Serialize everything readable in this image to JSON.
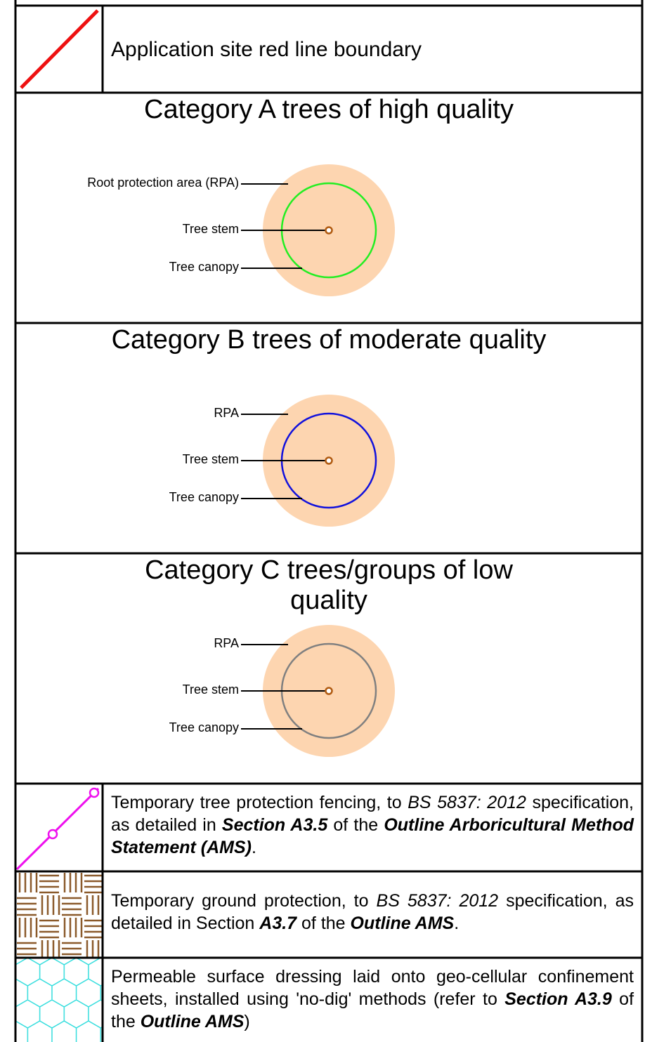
{
  "boundary": {
    "label": "Application site red line boundary",
    "color": "#ee1111"
  },
  "categories": [
    {
      "title": "Category A trees of high quality",
      "rpa_label": "Root protection area (RPA)",
      "stem_label": "Tree stem",
      "canopy_label": "Tree canopy",
      "canopy_color": "#22ee22"
    },
    {
      "title": "Category B trees of moderate quality",
      "rpa_label": "RPA",
      "stem_label": "Tree stem",
      "canopy_label": "Tree canopy",
      "canopy_color": "#1111dd"
    },
    {
      "title": "Category C trees/groups of low quality",
      "rpa_label": "RPA",
      "stem_label": "Tree stem",
      "canopy_label": "Tree canopy",
      "canopy_color": "#808080"
    }
  ],
  "legend_rows": [
    {
      "segments": [
        {
          "text": "Temporary tree protection fencing, to ",
          "style": "normal"
        },
        {
          "text": "BS 5837: 2012",
          "style": "italic"
        },
        {
          "text": " specification, as detailed in ",
          "style": "normal"
        },
        {
          "text": "Section A3.5",
          "style": "bold-italic"
        },
        {
          "text": " of the ",
          "style": "normal"
        },
        {
          "text": "Outline Arboricultural Method Statement (AMS)",
          "style": "bold-italic"
        },
        {
          "text": ".",
          "style": "normal"
        }
      ]
    },
    {
      "segments": [
        {
          "text": "Temporary ground protection, to ",
          "style": "normal"
        },
        {
          "text": "BS 5837: 2012",
          "style": "italic"
        },
        {
          "text": " specification, as detailed in Section ",
          "style": "normal"
        },
        {
          "text": "A3.7",
          "style": "bold-italic"
        },
        {
          "text": " of the ",
          "style": "normal"
        },
        {
          "text": "Outline AMS",
          "style": "bold-italic"
        },
        {
          "text": ".",
          "style": "normal"
        }
      ]
    },
    {
      "segments": [
        {
          "text": "Permeable surface dressing laid onto geo-cellular confinement sheets, installed using 'no-dig' methods (refer to ",
          "style": "normal"
        },
        {
          "text": "Section A3.9",
          "style": "bold-italic"
        },
        {
          "text": " of the ",
          "style": "normal"
        },
        {
          "text": "Outline AMS",
          "style": "bold-italic"
        },
        {
          "text": ")",
          "style": "normal"
        }
      ]
    }
  ]
}
